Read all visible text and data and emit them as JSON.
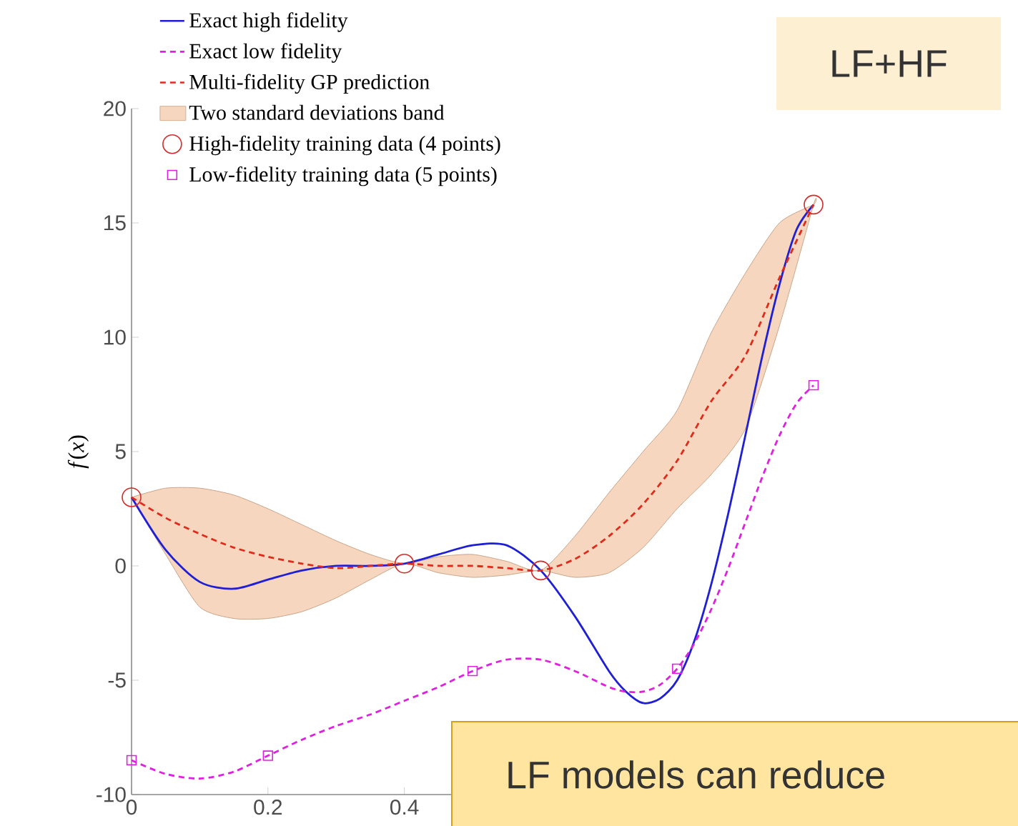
{
  "chart_data": {
    "type": "line",
    "ylabel": "*f*(*x*)",
    "xlim": [
      0,
      1
    ],
    "ylim": [
      -10,
      20
    ],
    "xticks": [
      0,
      0.2,
      0.4
    ],
    "yticks": [
      -10,
      -5,
      0,
      5,
      10,
      15,
      20
    ],
    "legend": "top left",
    "grid": false,
    "series": [
      {
        "name": "Exact high fidelity",
        "color": "#1f1fd6",
        "line_style": "solid",
        "marker": "none",
        "x": [
          0,
          0.05,
          0.1,
          0.15,
          0.2,
          0.25,
          0.3,
          0.35,
          0.4,
          0.45,
          0.5,
          0.55,
          0.6,
          0.65,
          0.7,
          0.725,
          0.75,
          0.775,
          0.8,
          0.825,
          0.85,
          0.875,
          0.9,
          0.925,
          0.95,
          0.975,
          1
        ],
        "values": [
          3.0,
          0.7,
          -0.7,
          -1.0,
          -0.6,
          -0.2,
          0.0,
          0.0,
          0.1,
          0.5,
          0.9,
          0.9,
          -0.2,
          -2.2,
          -4.6,
          -5.5,
          -6.0,
          -5.8,
          -5.0,
          -3.3,
          -0.8,
          2.3,
          5.7,
          9.2,
          12.3,
          14.7,
          15.8
        ]
      },
      {
        "name": "Exact low fidelity",
        "color": "#e020e0",
        "line_style": "dashed",
        "marker": "none",
        "x": [
          0,
          0.05,
          0.1,
          0.15,
          0.2,
          0.25,
          0.3,
          0.35,
          0.4,
          0.45,
          0.5,
          0.55,
          0.6,
          0.65,
          0.7,
          0.725,
          0.75,
          0.775,
          0.8,
          0.825,
          0.85,
          0.875,
          0.9,
          0.925,
          0.95,
          0.975,
          1
        ],
        "values": [
          -8.5,
          -9.1,
          -9.3,
          -9.0,
          -8.3,
          -7.6,
          -7.0,
          -6.5,
          -5.9,
          -5.3,
          -4.6,
          -4.1,
          -4.1,
          -4.6,
          -5.3,
          -5.5,
          -5.5,
          -5.2,
          -4.5,
          -3.4,
          -1.9,
          -0.1,
          1.9,
          3.9,
          5.7,
          7.1,
          7.9
        ]
      },
      {
        "name": "Multi-fidelity GP prediction",
        "color": "#e02a1a",
        "line_style": "dashed",
        "marker": "none",
        "x": [
          0,
          0.05,
          0.1,
          0.15,
          0.2,
          0.25,
          0.3,
          0.35,
          0.4,
          0.45,
          0.5,
          0.55,
          0.6,
          0.65,
          0.7,
          0.75,
          0.8,
          0.85,
          0.9,
          0.95,
          1
        ],
        "values": [
          3.0,
          2.1,
          1.4,
          0.8,
          0.4,
          0.1,
          -0.1,
          0.0,
          0.1,
          0.0,
          0.0,
          -0.1,
          -0.2,
          0.3,
          1.3,
          2.7,
          4.6,
          7.2,
          9.2,
          12.6,
          15.8
        ],
        "upper": [
          3.0,
          3.4,
          3.4,
          3.1,
          2.5,
          1.8,
          1.1,
          0.5,
          0.1,
          0.4,
          0.5,
          0.2,
          -0.2,
          1.3,
          3.2,
          5.0,
          6.8,
          10.2,
          12.8,
          15.0,
          15.8
        ],
        "lower": [
          3.0,
          0.5,
          -1.8,
          -2.3,
          -2.3,
          -2.0,
          -1.4,
          -0.6,
          0.1,
          -0.3,
          -0.5,
          -0.4,
          -0.2,
          -0.5,
          -0.3,
          0.8,
          2.5,
          4.0,
          6.0,
          10.5,
          15.8
        ]
      },
      {
        "name": "High-fidelity training data (4 points)",
        "type": "scatter",
        "color": "#d42a2a",
        "marker": "circle",
        "x": [
          0,
          0.4,
          0.6,
          1
        ],
        "values": [
          3.0,
          0.1,
          -0.2,
          15.8
        ]
      },
      {
        "name": "Low-fidelity training data (5 points)",
        "type": "scatter",
        "color": "#e020e0",
        "marker": "square",
        "x": [
          0,
          0.2,
          0.5,
          0.8,
          1
        ],
        "values": [
          -8.5,
          -8.3,
          -4.6,
          -4.5,
          7.9
        ]
      }
    ],
    "annotations": [
      "Two standard deviations band",
      "LF+HF",
      "LF models can reduce"
    ]
  }
}
